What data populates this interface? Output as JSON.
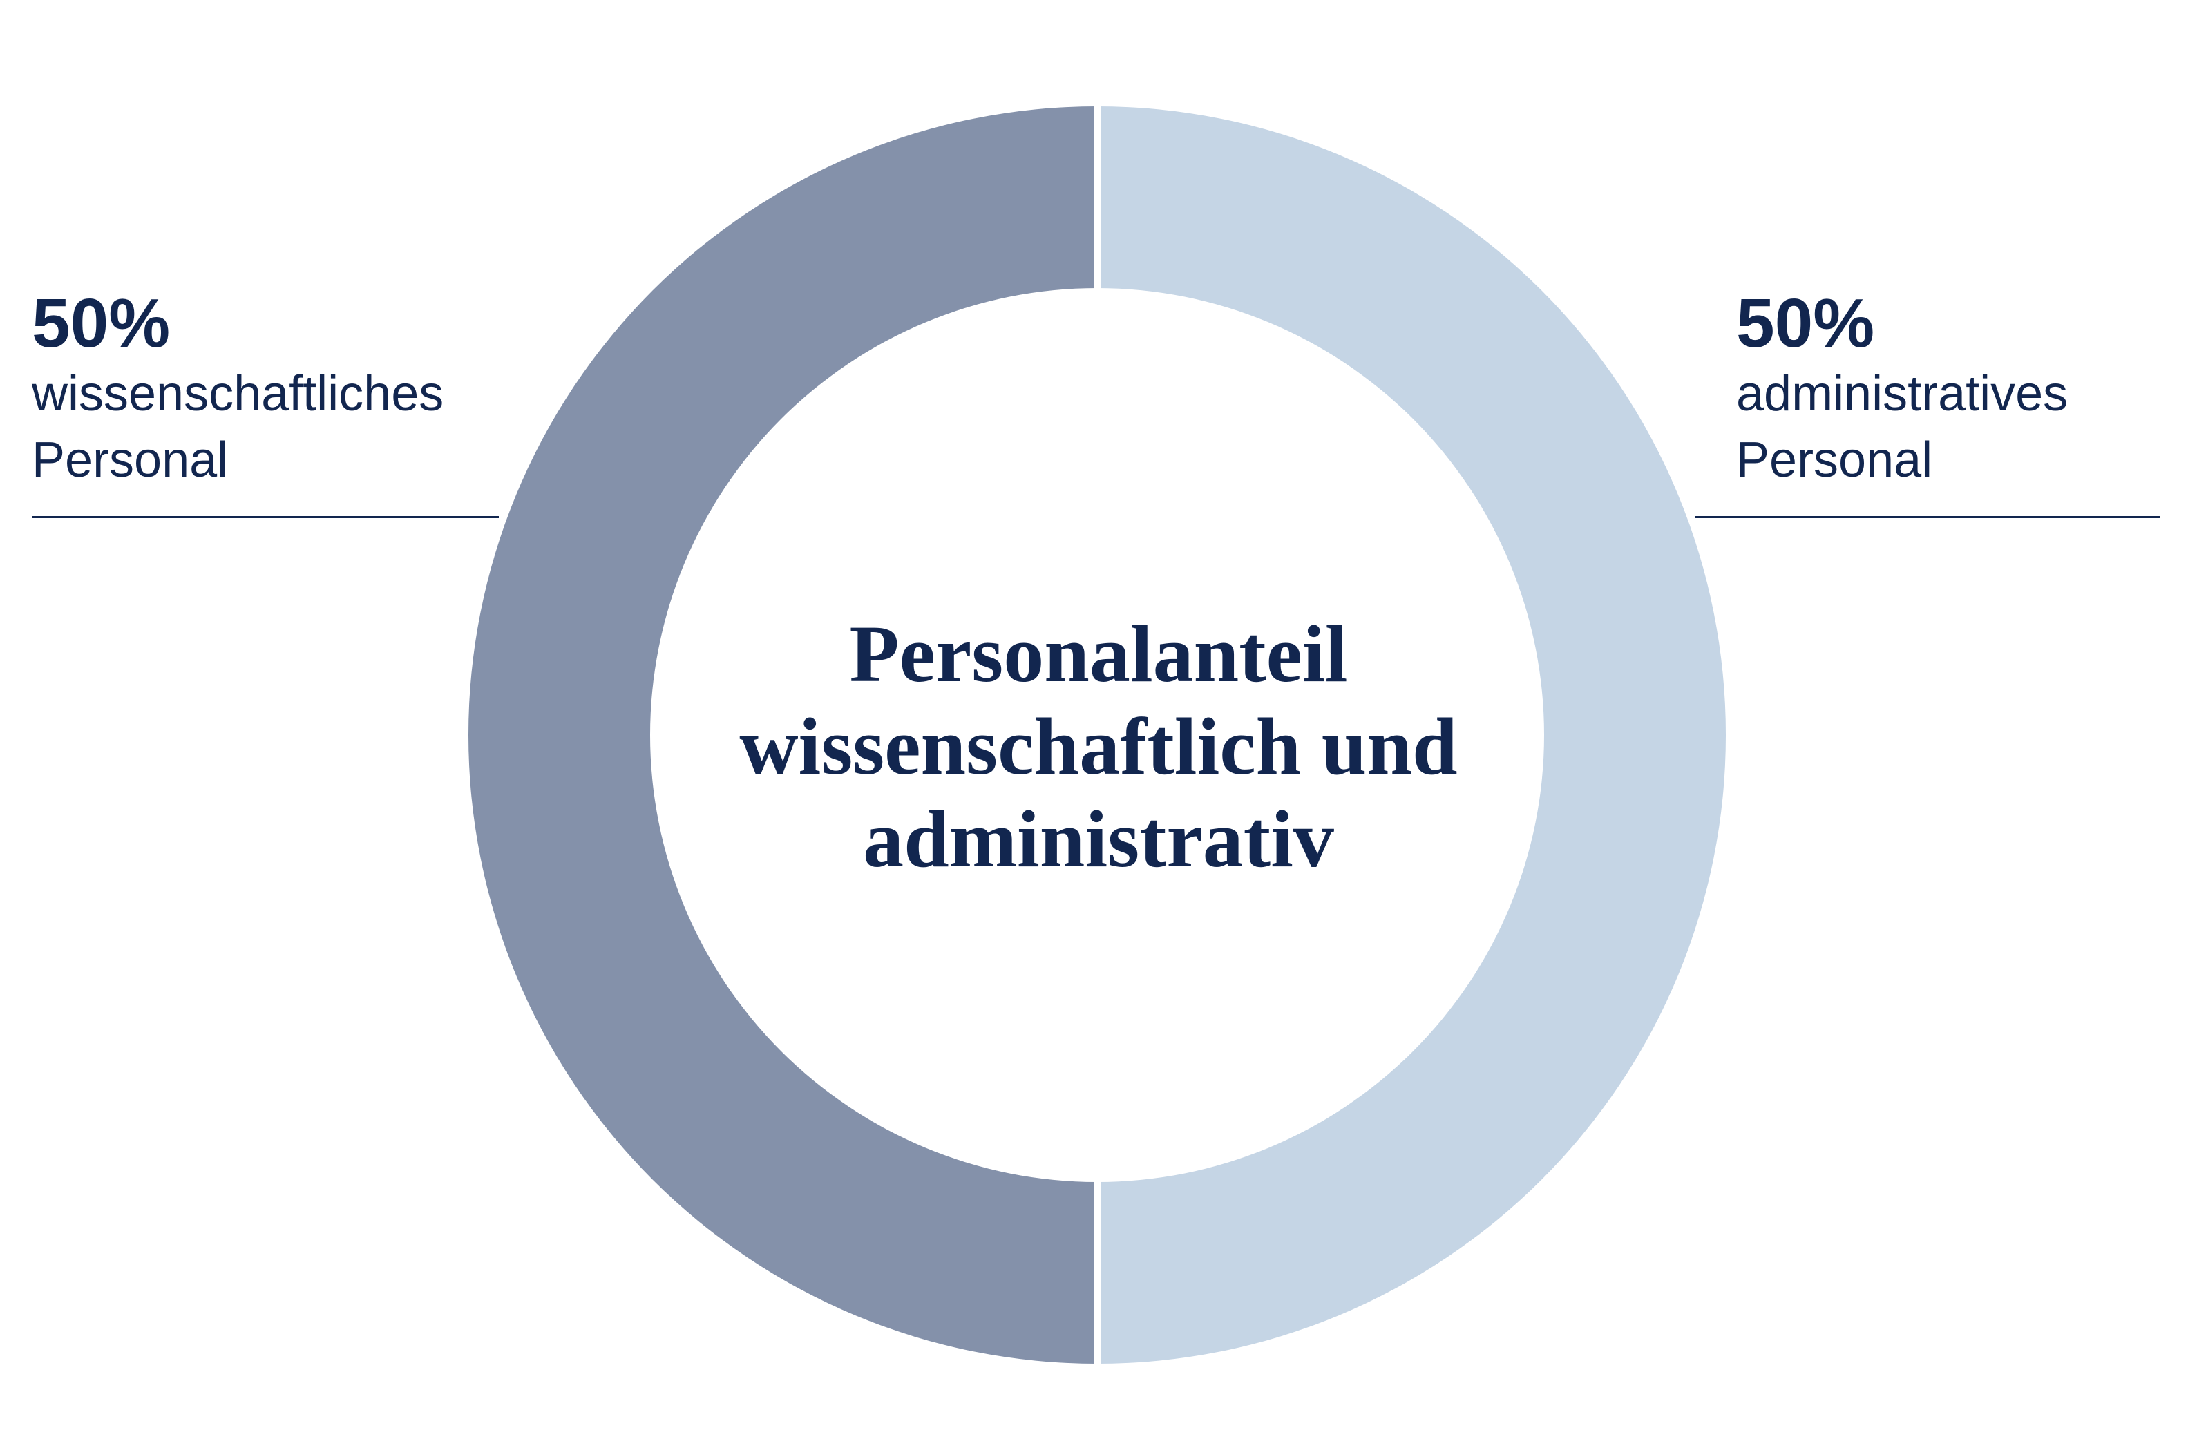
{
  "chart_data": {
    "type": "pie",
    "variant": "donut",
    "title": "Personalanteil\nwissenschaftlich und\nadministrativ",
    "slices": [
      {
        "label": "wissenschaftliches Personal",
        "value_label": "50%",
        "value": 50,
        "color": "#8491aa"
      },
      {
        "label": "administratives Personal",
        "value_label": "50%",
        "value": 50,
        "color": "#c5d5e5"
      }
    ]
  },
  "legend": {
    "left": {
      "pct": "50%",
      "line1": "wissenschaftliches",
      "line2": "Personal"
    },
    "right": {
      "pct": "50%",
      "line1": "administratives",
      "line2": "Personal"
    }
  },
  "colors": {
    "text": "#12264f",
    "separator": "#ffffff"
  }
}
